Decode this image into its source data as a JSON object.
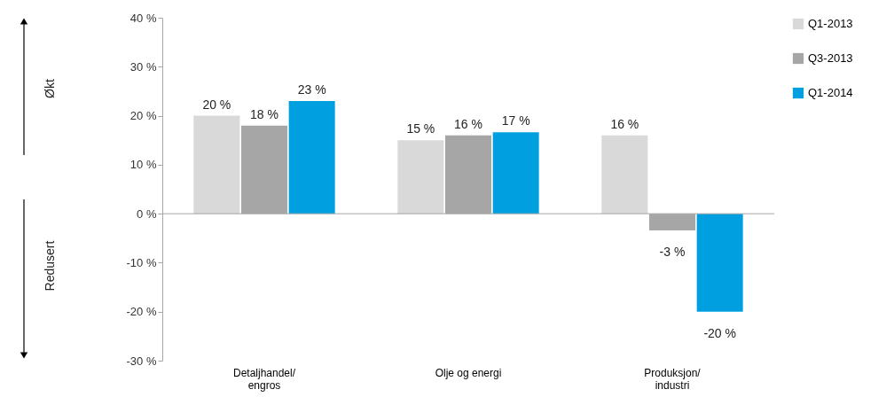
{
  "chart_data": {
    "type": "bar",
    "categories": [
      "Detaljhandel/engros",
      "Olje og energi",
      "Produksjon/industri"
    ],
    "series": [
      {
        "name": "Q1-2013",
        "color": "#d9d9d9",
        "values": [
          20,
          15,
          16
        ],
        "value_labels": [
          "20 %",
          "15 %",
          "16 %"
        ]
      },
      {
        "name": "Q3-2013",
        "color": "#a6a6a6",
        "values": [
          18,
          16,
          -3.4
        ],
        "value_labels": [
          "18 %",
          "16 %",
          "-3 %"
        ]
      },
      {
        "name": "Q1-2014",
        "color": "#00a0e0",
        "values": [
          23,
          16.6,
          -20
        ],
        "value_labels": [
          "23 %",
          "17 %",
          "-20 %"
        ]
      }
    ],
    "ylim": [
      -30,
      40
    ],
    "yticks": [
      {
        "value": -30,
        "label": "-30 %"
      },
      {
        "value": -20,
        "label": "-20 %"
      },
      {
        "value": -10,
        "label": "-10 %"
      },
      {
        "value": 0,
        "label": "0 %"
      },
      {
        "value": 10,
        "label": "10 %"
      },
      {
        "value": 20,
        "label": "20 %"
      },
      {
        "value": 30,
        "label": "30 %"
      },
      {
        "value": 40,
        "label": "40 %"
      }
    ],
    "ref_lines": [
      {
        "axis": "y",
        "value": 0,
        "color": "#a6a6a6"
      }
    ],
    "annotations": [
      "Økt",
      "Redusert"
    ],
    "legend": "right",
    "grid": false
  }
}
